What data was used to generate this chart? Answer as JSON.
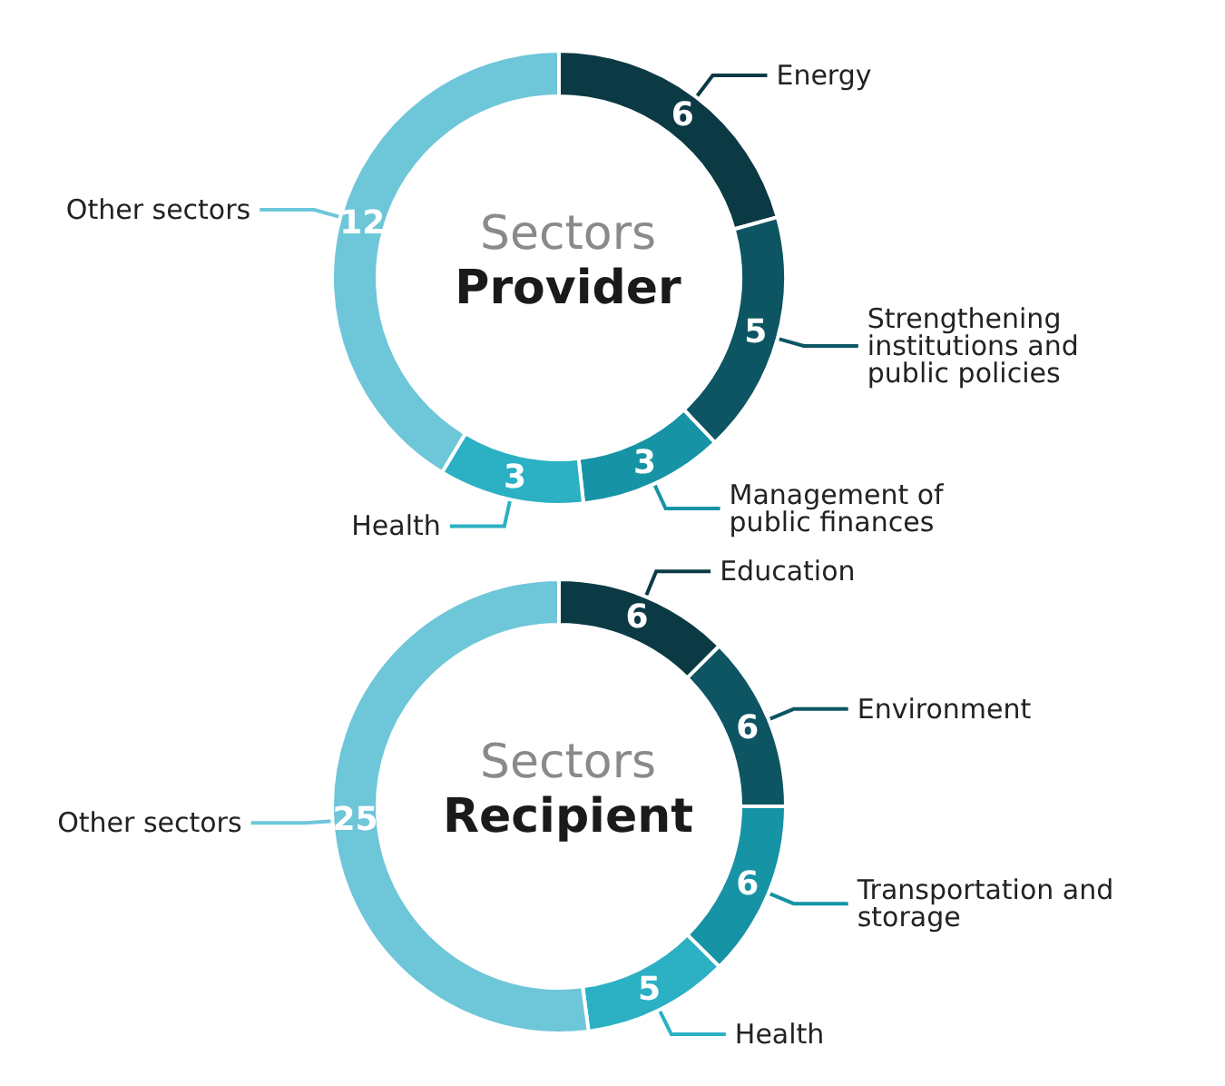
{
  "chart_data": [
    {
      "type": "donut",
      "title": "Sectors",
      "subtitle": "Provider",
      "categories": [
        "Energy",
        "Strengthening institutions and public policies",
        "Management of public finances",
        "Health",
        "Other sectors"
      ],
      "values": [
        6,
        5,
        3,
        3,
        12
      ],
      "colors": [
        "#0b3a45",
        "#0d5563",
        "#1693a5",
        "#2bb0c4",
        "#6ec6d9"
      ],
      "data_labels": true,
      "legend": false
    },
    {
      "type": "donut",
      "title": "Sectors",
      "subtitle": "Recipient",
      "categories": [
        "Education",
        "Environment",
        "Transportation and storage",
        "Health",
        "Other sectors"
      ],
      "values": [
        6,
        6,
        6,
        5,
        25
      ],
      "colors": [
        "#0b3a45",
        "#0d5563",
        "#1693a5",
        "#2bb0c4",
        "#6ec6d9"
      ],
      "data_labels": true,
      "legend": false
    }
  ]
}
